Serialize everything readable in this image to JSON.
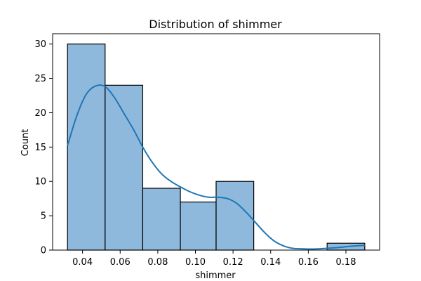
{
  "chart_data": {
    "type": "bar",
    "subtype": "histogram-with-kde",
    "title": "Distribution of shimmer",
    "xlabel": "shimmer",
    "ylabel": "Count",
    "bins": [
      {
        "x0": 0.032,
        "x1": 0.052,
        "count": 30
      },
      {
        "x0": 0.052,
        "x1": 0.072,
        "count": 24
      },
      {
        "x0": 0.072,
        "x1": 0.092,
        "count": 9
      },
      {
        "x0": 0.092,
        "x1": 0.111,
        "count": 7
      },
      {
        "x0": 0.111,
        "x1": 0.131,
        "count": 10
      },
      {
        "x0": 0.131,
        "x1": 0.151,
        "count": 0
      },
      {
        "x0": 0.151,
        "x1": 0.17,
        "count": 0
      },
      {
        "x0": 0.17,
        "x1": 0.19,
        "count": 1
      }
    ],
    "kde": {
      "x": [
        0.032,
        0.037,
        0.042,
        0.047,
        0.052,
        0.057,
        0.062,
        0.067,
        0.072,
        0.077,
        0.082,
        0.087,
        0.092,
        0.097,
        0.102,
        0.107,
        0.112,
        0.117,
        0.122,
        0.127,
        0.132,
        0.137,
        0.142,
        0.147,
        0.152,
        0.157,
        0.162,
        0.167,
        0.172,
        0.177,
        0.182,
        0.187,
        0.19
      ],
      "y": [
        15.2,
        19.6,
        22.7,
        23.9,
        23.8,
        22.2,
        19.9,
        17.6,
        15.0,
        12.8,
        11.1,
        10.0,
        9.2,
        8.5,
        8.0,
        7.7,
        7.7,
        7.5,
        6.8,
        5.5,
        4.0,
        2.5,
        1.3,
        0.6,
        0.25,
        0.18,
        0.15,
        0.2,
        0.3,
        0.4,
        0.55,
        0.65,
        0.7
      ]
    },
    "xlim": [
      0.0241,
      0.1979
    ],
    "ylim": [
      0,
      31.5
    ],
    "xticks": [
      0.04,
      0.06,
      0.08,
      0.1,
      0.12,
      0.14,
      0.16,
      0.18
    ],
    "xtick_labels": [
      "0.04",
      "0.06",
      "0.08",
      "0.10",
      "0.12",
      "0.14",
      "0.16",
      "0.18"
    ],
    "yticks": [
      0,
      5,
      10,
      15,
      20,
      25,
      30
    ],
    "ytick_labels": [
      "0",
      "5",
      "10",
      "15",
      "20",
      "25",
      "30"
    ],
    "grid": false,
    "colors": {
      "bar_fill": "#8fb9dc",
      "bar_edge": "#000000",
      "kde_line": "#1f77b4",
      "axis": "#000000"
    }
  }
}
